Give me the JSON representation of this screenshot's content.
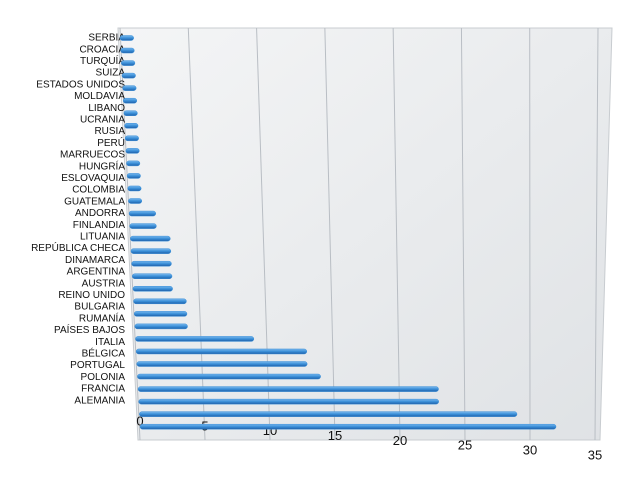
{
  "chart_data": {
    "type": "bar",
    "orientation": "horizontal",
    "categories": [
      "SERBIA",
      "CROACIA",
      "TURQUÍA",
      "SUIZA",
      "ESTADOS UNIDOS",
      "MOLDAVIA",
      "LIBANO",
      "UCRANIA",
      "RUSIA",
      "PERÚ",
      "MARRUECOS",
      "HUNGRÍA",
      "ESLOVAQUIA",
      "COLOMBIA",
      "GUATEMALA",
      "ANDORRA",
      "FINLANDIA",
      "LITUANIA",
      "REPÚBLICA CHECA",
      "DINAMARCA",
      "ARGENTINA",
      "AUSTRIA",
      "REINO UNIDO",
      "BULGARIA",
      "RUMANÍA",
      "PAÍSES BAJOS",
      "ITALIA",
      "BÉLGICA",
      "PORTUGAL",
      "POLONIA",
      "FRANCIA",
      "ALEMANIA"
    ],
    "values": [
      1,
      1,
      1,
      1,
      1,
      1,
      1,
      1,
      1,
      1,
      1,
      1,
      1,
      1,
      2,
      2,
      3,
      3,
      3,
      3,
      3,
      4,
      4,
      4,
      9,
      13,
      13,
      14,
      23,
      23,
      29,
      32
    ],
    "color": "#3a8fd8",
    "xlim": [
      0,
      35
    ],
    "xticks": [
      0,
      5,
      10,
      15,
      20,
      25,
      30,
      35
    ],
    "grid": true
  }
}
